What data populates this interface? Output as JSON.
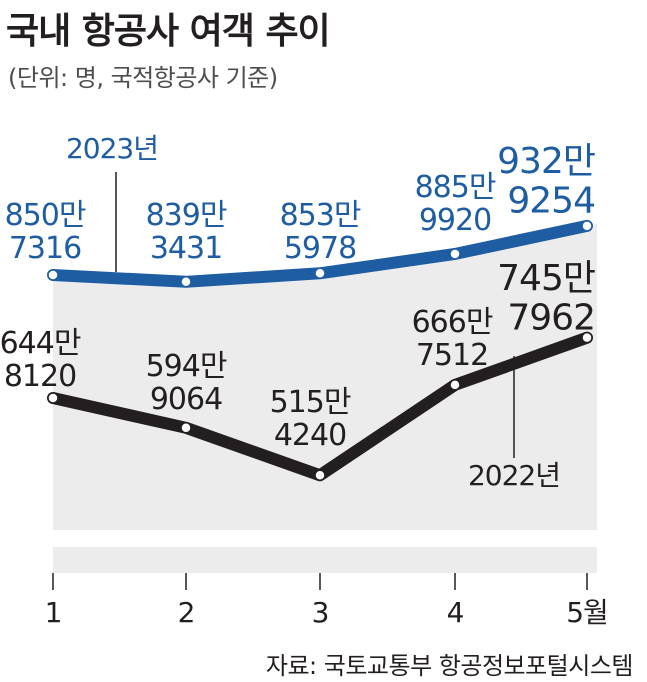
{
  "title": "국내 항공사 여객 추이",
  "unit_note": "(단위: 명, 국적항공사 기준)",
  "source": "자료: 국토교통부 항공정보포털시스템",
  "colors": {
    "series_2023": "#1f5da3",
    "series_2022": "#231f20",
    "band": "#ececed"
  },
  "chart_data": {
    "type": "line",
    "title": "국내 항공사 여객 추이",
    "subtitle": "(단위: 명, 국적항공사 기준)",
    "x": [
      1,
      2,
      3,
      4,
      5
    ],
    "x_tick_labels": [
      "1",
      "2",
      "3",
      "4",
      "5월"
    ],
    "ylabel": "",
    "xlabel": "",
    "ylim": [
      5000000,
      9700000
    ],
    "grid": false,
    "series": [
      {
        "name": "2023년",
        "color": "#1f5da3",
        "values": [
          8507316,
          8393431,
          8535978,
          8859920,
          9329254
        ],
        "labels": [
          [
            "850만",
            "7316"
          ],
          [
            "839만",
            "3431"
          ],
          [
            "853만",
            "5978"
          ],
          [
            "885만",
            "9920"
          ],
          [
            "932만",
            "9254"
          ]
        ]
      },
      {
        "name": "2022년",
        "color": "#231f20",
        "values": [
          6448120,
          5949064,
          5154240,
          6667512,
          7457962
        ],
        "labels": [
          [
            "644만",
            "8120"
          ],
          [
            "594만",
            "9064"
          ],
          [
            "515만",
            "4240"
          ],
          [
            "666만",
            "7512"
          ],
          [
            "745만",
            "7962"
          ]
        ]
      }
    ]
  }
}
